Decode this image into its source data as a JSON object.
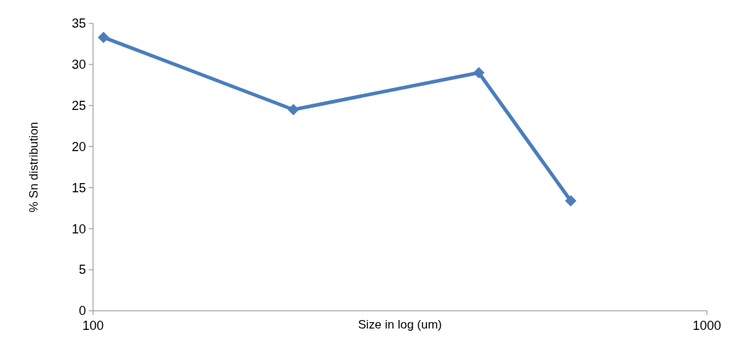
{
  "chart_data": {
    "type": "line",
    "xlabel": "Size in log (um)",
    "ylabel": "% Sn distribution",
    "log": "x",
    "x": [
      104,
      212,
      425,
      600
    ],
    "series": [
      {
        "color": "#4a7ebb",
        "values": [
          33.3,
          24.5,
          29.0,
          13.4
        ]
      }
    ],
    "xlim": [
      100,
      1000
    ],
    "xticks": [
      100,
      1000
    ],
    "ylim": [
      0,
      35
    ],
    "yticks": [
      0,
      5,
      10,
      15,
      20,
      25,
      30,
      35
    ],
    "grid": false,
    "marker": "diamond",
    "line_style": "solid"
  }
}
